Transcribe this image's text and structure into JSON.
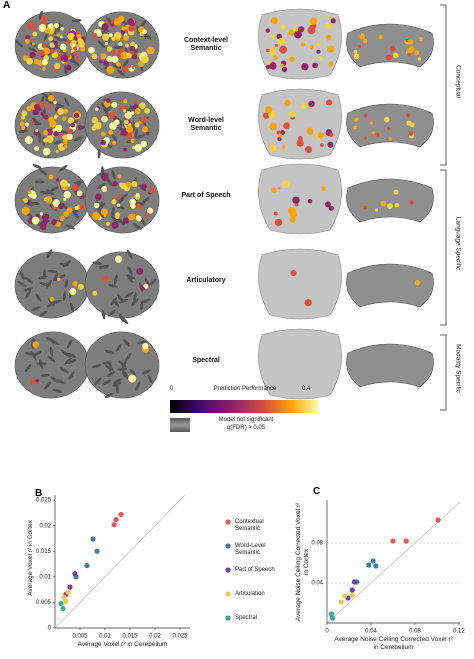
{
  "panels": [
    "A",
    "B",
    "C"
  ],
  "panel_a": {
    "rows": [
      "Context-level Semantic",
      "Word-level Semantic",
      "Part of Speech",
      "Articulatory",
      "Spectral"
    ],
    "groups": [
      "Conceptual",
      "Language Specific",
      "Modality Specific"
    ],
    "colorbar": {
      "min": 0,
      "max": 0.4,
      "label": "Prediction Performance"
    },
    "not_significant": [
      "Model not significant",
      "q(FDR) > 0.05"
    ]
  },
  "chart_data": [
    {
      "type": "scatter",
      "xlabel": "Average Voxel r² in Cerebellum",
      "ylabel": "Average Voxel r² in Cortex",
      "xlim": [
        0,
        0.027
      ],
      "ylim": [
        0,
        0.026
      ],
      "xticks": [
        0.005,
        0.01,
        0.015,
        0.02,
        0.025
      ],
      "yticks": [
        0,
        0.005,
        0.01,
        0.015,
        0.02,
        0.025
      ],
      "grid": false,
      "series": [
        {
          "name": "Contextual Semantic",
          "color": "#e8555a",
          "x": [
            0.0122,
            0.0132,
            0.0118
          ],
          "y": [
            0.0212,
            0.0222,
            0.0202
          ]
        },
        {
          "name": "Word-Level Semantic",
          "color": "#3d7ea6",
          "x": [
            0.0076,
            0.0084,
            0.0064,
            0.0042
          ],
          "y": [
            0.0174,
            0.015,
            0.0122,
            0.01
          ]
        },
        {
          "name": "Part of Speech",
          "color": "#7b3aa6",
          "x": [
            0.004,
            0.003,
            0.0022
          ],
          "y": [
            0.0106,
            0.008,
            0.0066
          ]
        },
        {
          "name": "Articulation",
          "color": "#f2c94c",
          "x": [
            0.0018,
            0.0022,
            0.0026
          ],
          "y": [
            0.006,
            0.0052,
            0.007
          ]
        },
        {
          "name": "Spectral",
          "color": "#3aa99f",
          "x": [
            0.0012,
            0.0016
          ],
          "y": [
            0.0048,
            0.0038
          ]
        }
      ]
    },
    {
      "type": "scatter",
      "xlabel": "Average Noise Ceiling Corrected Voxel r² in Cerebellum",
      "ylabel": "Average Noise Ceiling Corrected Voxel r² in Cortex",
      "xlim": [
        0,
        0.121
      ],
      "ylim": [
        0,
        0.123
      ],
      "xticks": [
        0,
        0.04,
        0.08,
        0.12
      ],
      "yticks": [
        0.04,
        0.08
      ],
      "grid": true,
      "series": [
        {
          "color": "#e8555a",
          "x": [
            0.101,
            0.06,
            0.072
          ],
          "y": [
            0.103,
            0.082,
            0.082
          ]
        },
        {
          "color": "#3d7ea6",
          "x": [
            0.042,
            0.038,
            0.0445,
            0.027
          ],
          "y": [
            0.062,
            0.058,
            0.057,
            0.041
          ]
        },
        {
          "color": "#7b3aa6",
          "x": [
            0.025,
            0.023,
            0.019
          ],
          "y": [
            0.041,
            0.033,
            0.025
          ]
        },
        {
          "color": "#f2c94c",
          "x": [
            0.016,
            0.013,
            0.023
          ],
          "y": [
            0.027,
            0.021,
            0.028
          ]
        },
        {
          "color": "#3aa99f",
          "x": [
            0.004,
            0.005
          ],
          "y": [
            0.009,
            0.005
          ]
        }
      ]
    }
  ]
}
